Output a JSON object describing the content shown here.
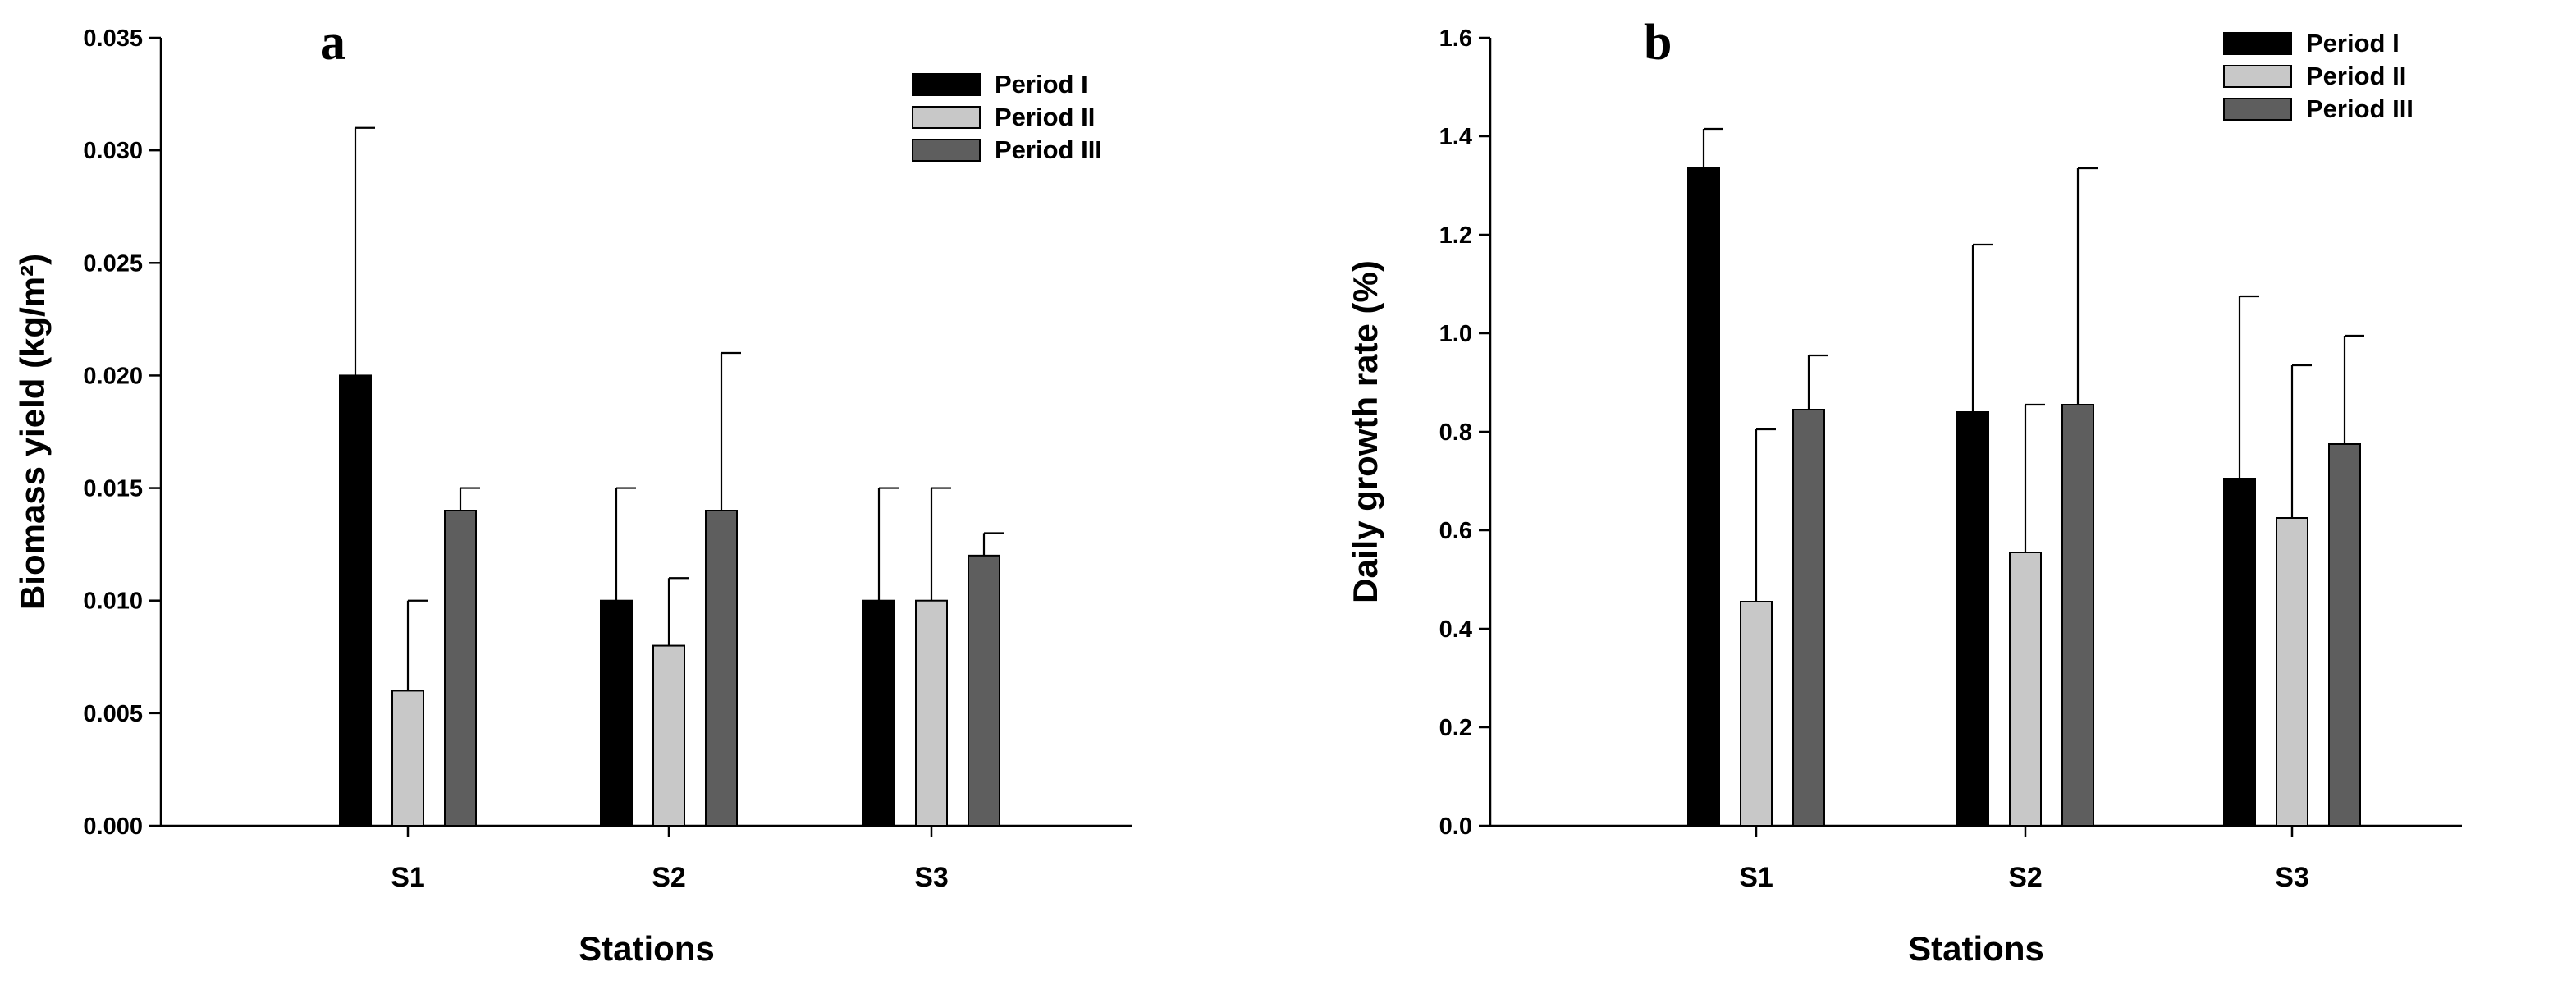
{
  "colors": {
    "Period I": "#000000",
    "Period II": "#c8c8c8",
    "Period III": "#5e5e5e"
  },
  "chart_data": [
    {
      "type": "bar",
      "panel": "a",
      "categories": [
        "S1",
        "S2",
        "S3"
      ],
      "series": [
        {
          "name": "Period I",
          "values": [
            0.02,
            0.01,
            0.01
          ],
          "error": [
            0.011,
            0.005,
            0.005
          ]
        },
        {
          "name": "Period II",
          "values": [
            0.006,
            0.008,
            0.01
          ],
          "error": [
            0.004,
            0.003,
            0.005
          ]
        },
        {
          "name": "Period III",
          "values": [
            0.014,
            0.014,
            0.012
          ],
          "error": [
            0.001,
            0.007,
            0.001
          ]
        }
      ],
      "xlabel": "Stations",
      "ylabel": "Biomass yield (kg/m²)",
      "ylim": [
        0,
        0.035
      ],
      "yticks": [
        "0.000",
        "0.005",
        "0.010",
        "0.015",
        "0.020",
        "0.025",
        "0.030",
        "0.035"
      ],
      "grid": false,
      "legend": "top-right"
    },
    {
      "type": "bar",
      "panel": "b",
      "categories": [
        "S1",
        "S2",
        "S3"
      ],
      "series": [
        {
          "name": "Period I",
          "values": [
            1.335,
            0.84,
            0.705
          ],
          "error": [
            0.08,
            0.34,
            0.37
          ]
        },
        {
          "name": "Period II",
          "values": [
            0.455,
            0.555,
            0.625
          ],
          "error": [
            0.35,
            0.3,
            0.31
          ]
        },
        {
          "name": "Period III",
          "values": [
            0.845,
            0.855,
            0.775
          ],
          "error": [
            0.11,
            0.48,
            0.22
          ]
        }
      ],
      "xlabel": "Stations",
      "ylabel": "Daily growth rate (%)",
      "ylim": [
        0,
        1.6
      ],
      "yticks": [
        "0.0",
        "0.2",
        "0.4",
        "0.6",
        "0.8",
        "1.0",
        "1.2",
        "1.4",
        "1.6"
      ],
      "grid": false,
      "legend": "top-right"
    }
  ]
}
